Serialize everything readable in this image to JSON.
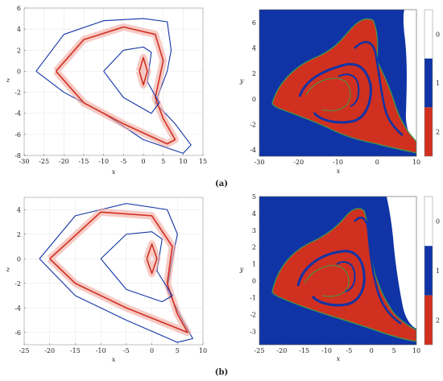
{
  "figure": {
    "captions": [
      "(a)",
      "(b)"
    ]
  },
  "colors": {
    "blue": "#1034a6",
    "red": "#d03020",
    "green": "#3aa04a",
    "pink": "#f2a8a0",
    "white": "#ffffff",
    "grid": "#e6e6e6"
  },
  "chart_data": [
    {
      "id": "a-trajectory",
      "type": "line",
      "title": "",
      "xlabel": "x",
      "ylabel": "z",
      "xlim": [
        -30,
        15
      ],
      "ylim": [
        -8,
        6
      ],
      "xticks": [
        -30,
        -25,
        -20,
        -15,
        -10,
        -5,
        0,
        5,
        10,
        15
      ],
      "yticks": [
        -8,
        -6,
        -4,
        -2,
        0,
        2,
        4,
        6
      ],
      "grid": true,
      "series": [
        {
          "role": "outer-orbit",
          "color": "#1034a6",
          "x": [
            -27,
            -20,
            -10,
            0,
            6,
            7,
            6,
            3,
            8,
            12,
            10,
            0,
            -10,
            -20,
            -27
          ],
          "y": [
            0,
            3.5,
            4.8,
            5,
            4.7,
            2,
            0,
            -3,
            -5,
            -7,
            -7.8,
            -6.5,
            -4,
            -2,
            0
          ]
        },
        {
          "role": "bundle",
          "color": "#d03020",
          "x": [
            -22,
            -15,
            -5,
            3,
            5,
            3,
            5,
            8,
            6,
            -5,
            -15,
            -22
          ],
          "y": [
            0,
            3,
            4.2,
            3.5,
            1,
            -2.5,
            -4.5,
            -6.5,
            -6.9,
            -5,
            -3,
            0
          ]
        },
        {
          "role": "inner-loop",
          "color": "#1034a6",
          "x": [
            -10,
            -5,
            0,
            2,
            1,
            4,
            2,
            -5,
            -10
          ],
          "y": [
            0,
            2,
            2.3,
            1.8,
            -1,
            -3,
            -4,
            -2.5,
            0
          ]
        },
        {
          "role": "core",
          "color": "#d03020",
          "x": [
            -1,
            0,
            1,
            0,
            -1
          ],
          "y": [
            0,
            1.3,
            0,
            -1.3,
            0
          ]
        }
      ]
    },
    {
      "id": "a-basin",
      "type": "heatmap",
      "title": "",
      "xlabel": "x",
      "ylabel": "y",
      "xlim": [
        -30,
        10
      ],
      "ylim": [
        -4.5,
        7
      ],
      "xticks": [
        -30,
        -20,
        -10,
        0,
        10
      ],
      "yticks": [
        -4,
        -2,
        0,
        2,
        4,
        6
      ],
      "regions": {
        "background": 1,
        "main_lobe": 2,
        "right_edge": 0
      },
      "colorbar": {
        "levels": [
          0,
          1,
          2
        ],
        "colors": [
          "#ffffff",
          "#1034a6",
          "#d03020"
        ]
      }
    },
    {
      "id": "b-trajectory",
      "type": "line",
      "title": "",
      "xlabel": "x",
      "ylabel": "z",
      "xlim": [
        -25,
        10
      ],
      "ylim": [
        -7,
        5
      ],
      "xticks": [
        -25,
        -20,
        -15,
        -10,
        -5,
        0,
        5,
        10
      ],
      "yticks": [
        -6,
        -4,
        -2,
        0,
        2,
        4
      ],
      "grid": true,
      "series": [
        {
          "role": "outer-orbit",
          "color": "#1034a6",
          "x": [
            -22,
            -15,
            -5,
            3,
            5,
            4,
            3,
            6,
            8,
            5,
            -5,
            -15,
            -22
          ],
          "y": [
            0,
            3.5,
            4.5,
            4,
            2,
            0,
            -2.5,
            -5,
            -6.5,
            -6.8,
            -5,
            -3,
            0
          ]
        },
        {
          "role": "bundle",
          "color": "#d03020",
          "x": [
            -20,
            -10,
            0,
            4,
            3,
            5,
            7,
            -5,
            -15,
            -20
          ],
          "y": [
            0,
            3.8,
            3.5,
            1,
            -2,
            -4.5,
            -6,
            -4,
            -2,
            0
          ]
        },
        {
          "role": "inner-loop",
          "color": "#1034a6",
          "x": [
            -10,
            -5,
            0,
            2,
            1,
            4,
            2,
            -5,
            -10
          ],
          "y": [
            0,
            2,
            2.2,
            1.6,
            -1,
            -3,
            -3.5,
            -2.5,
            0
          ]
        },
        {
          "role": "core",
          "color": "#d03020",
          "x": [
            -1,
            0,
            1,
            0,
            -1
          ],
          "y": [
            0,
            1.2,
            0,
            -1.2,
            0
          ]
        }
      ]
    },
    {
      "id": "b-basin",
      "type": "heatmap",
      "title": "",
      "xlabel": "x",
      "ylabel": "y",
      "xlim": [
        -25,
        10
      ],
      "ylim": [
        -3.8,
        5
      ],
      "xticks": [
        -25,
        -20,
        -15,
        -10,
        -5,
        0,
        5,
        10
      ],
      "yticks": [
        -3,
        -2,
        -1,
        0,
        1,
        2,
        3,
        4,
        5
      ],
      "regions": {
        "background": 1,
        "main_lobe": 2,
        "right_edge": 0
      },
      "colorbar": {
        "levels": [
          0,
          1,
          2
        ],
        "colors": [
          "#ffffff",
          "#1034a6",
          "#d03020"
        ]
      }
    }
  ]
}
